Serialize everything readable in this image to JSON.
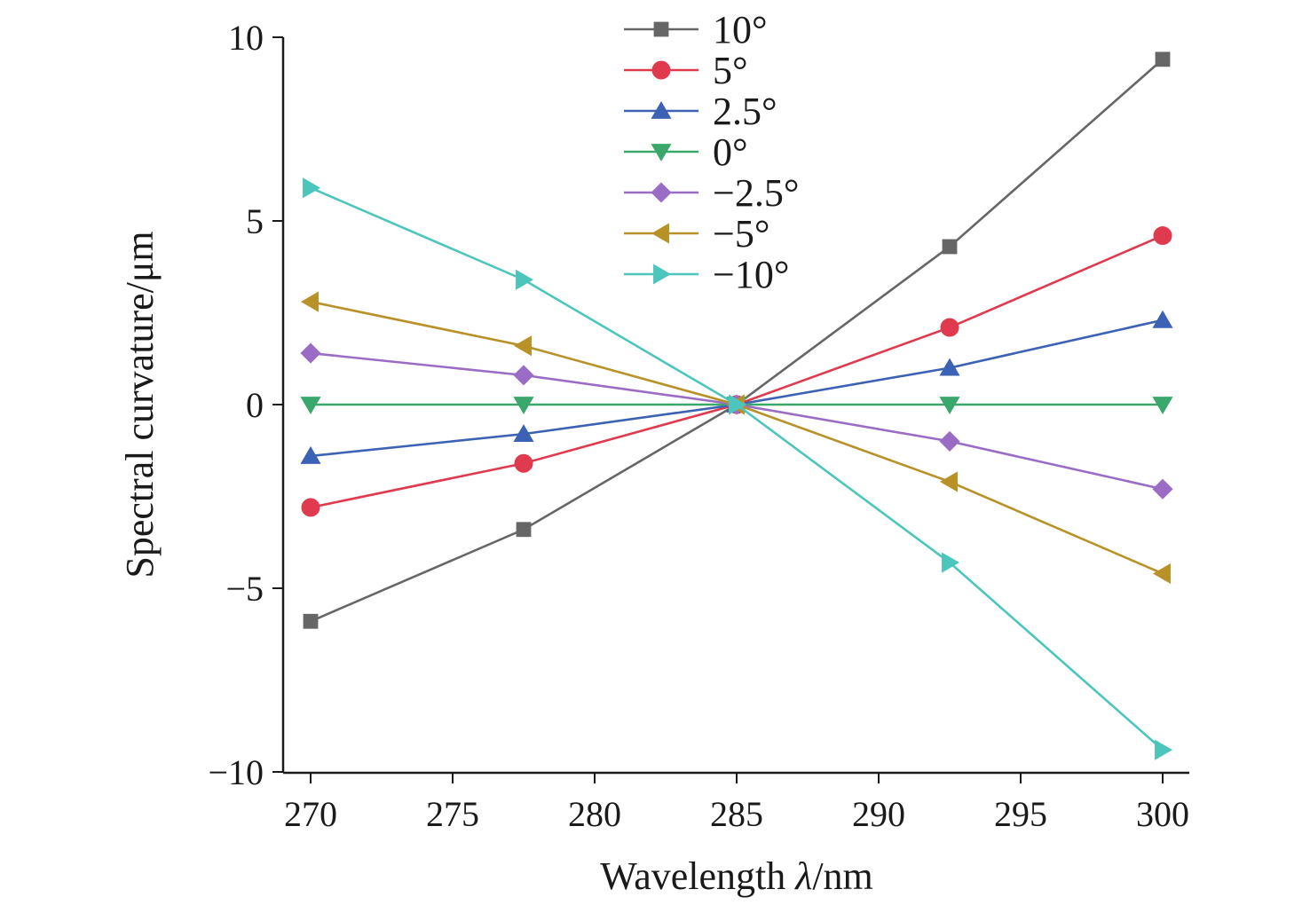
{
  "chart_data": {
    "type": "line",
    "xlabel_prefix": "Wavelength ",
    "xlabel_symbol": "λ",
    "xlabel_suffix": "/nm",
    "ylabel": "Spectral curvature/μm",
    "xlim": [
      269,
      301
    ],
    "ylim": [
      -10,
      10
    ],
    "xticks": [
      270,
      275,
      280,
      285,
      290,
      295,
      300
    ],
    "yticks": [
      -10,
      -5,
      0,
      5,
      10
    ],
    "ytick_labels": [
      "−10",
      "−5",
      "0",
      "5",
      "10"
    ],
    "grid": false,
    "legend_position": "top-center",
    "x": [
      270,
      277.5,
      285,
      292.5,
      300
    ],
    "series": [
      {
        "name": "10°",
        "marker": "square",
        "color": "#666666",
        "values": [
          -5.9,
          -3.4,
          0,
          4.3,
          9.4
        ]
      },
      {
        "name": "5°",
        "marker": "circle",
        "color": "#e03a4e",
        "values": [
          -2.8,
          -1.6,
          0,
          2.1,
          4.6
        ]
      },
      {
        "name": "2.5°",
        "marker": "triangle-up",
        "color": "#3c62b5",
        "values": [
          -1.4,
          -0.8,
          0,
          1.0,
          2.3
        ]
      },
      {
        "name": "0°",
        "marker": "triangle-down",
        "color": "#3aa86a",
        "values": [
          0,
          0,
          0,
          0,
          0
        ]
      },
      {
        "name": "−2.5°",
        "marker": "diamond",
        "color": "#9b6cc6",
        "values": [
          1.4,
          0.8,
          0,
          -1.0,
          -2.3
        ]
      },
      {
        "name": "−5°",
        "marker": "triangle-left",
        "color": "#b89228",
        "values": [
          2.8,
          1.6,
          0,
          -2.1,
          -4.6
        ]
      },
      {
        "name": "−10°",
        "marker": "triangle-right",
        "color": "#4cc6bd",
        "values": [
          5.9,
          3.4,
          0,
          -4.3,
          -9.4
        ]
      }
    ]
  }
}
